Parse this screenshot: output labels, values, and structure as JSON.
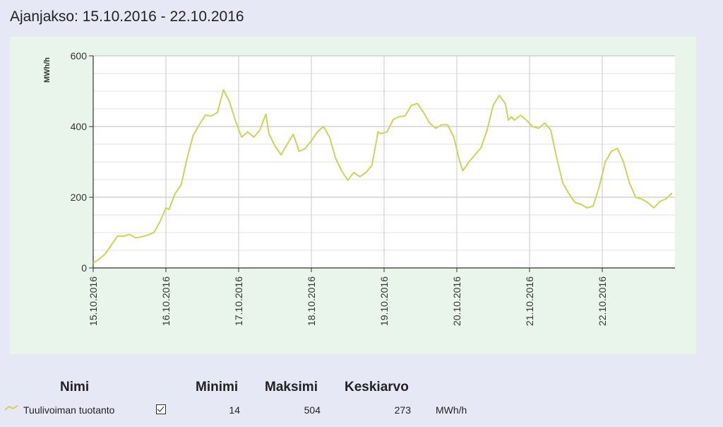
{
  "header": {
    "period_label": "Ajanjakso: 15.10.2016 - 22.10.2016"
  },
  "table": {
    "headers": {
      "name": "Nimi",
      "min": "Minimi",
      "max": "Maksimi",
      "avg": "Keskiarvo"
    },
    "rows": [
      {
        "name": "Tuulivoiman tuotanto",
        "checked": true,
        "min": "14",
        "max": "504",
        "avg": "273",
        "unit": "MWh/h"
      }
    ]
  },
  "colors": {
    "series": "#cdd45a",
    "axis": "#333333",
    "grid": "#c9c9c9",
    "panel": "#e9f5ea",
    "plot": "#ffffff"
  },
  "chart_data": {
    "type": "line",
    "ylabel": "MWh/h",
    "xlabel": "",
    "ylim": [
      0,
      600
    ],
    "yticks": [
      0,
      200,
      400,
      600
    ],
    "x_ticks": [
      "15.10.2016",
      "16.10.2016",
      "17.10.2016",
      "18.10.2016",
      "19.10.2016",
      "20.10.2016",
      "21.10.2016",
      "22.10.2016"
    ],
    "xlim": [
      "15.10.2016 00:00",
      "23.10.2016 00:00"
    ],
    "grid": true,
    "series": [
      {
        "points": [
          [
            "15.10.2016 00:00",
            14
          ],
          [
            "15.10.2016 02:00",
            25
          ],
          [
            "15.10.2016 04:00",
            40
          ],
          [
            "15.10.2016 06:00",
            65
          ],
          [
            "15.10.2016 08:00",
            90
          ],
          [
            "15.10.2016 10:00",
            90
          ],
          [
            "15.10.2016 12:00",
            95
          ],
          [
            "15.10.2016 14:00",
            85
          ],
          [
            "15.10.2016 16:00",
            88
          ],
          [
            "15.10.2016 18:00",
            93
          ],
          [
            "15.10.2016 20:00",
            100
          ],
          [
            "15.10.2016 22:00",
            130
          ],
          [
            "16.10.2016 00:00",
            170
          ],
          [
            "16.10.2016 01:00",
            165
          ],
          [
            "16.10.2016 03:00",
            210
          ],
          [
            "16.10.2016 05:00",
            235
          ],
          [
            "16.10.2016 07:00",
            310
          ],
          [
            "16.10.2016 09:00",
            375
          ],
          [
            "16.10.2016 11:00",
            405
          ],
          [
            "16.10.2016 13:00",
            432
          ],
          [
            "16.10.2016 15:00",
            430
          ],
          [
            "16.10.2016 17:00",
            440
          ],
          [
            "16.10.2016 19:00",
            504
          ],
          [
            "16.10.2016 21:00",
            470
          ],
          [
            "16.10.2016 23:00",
            415
          ],
          [
            "17.10.2016 01:00",
            370
          ],
          [
            "17.10.2016 03:00",
            385
          ],
          [
            "17.10.2016 05:00",
            370
          ],
          [
            "17.10.2016 07:00",
            390
          ],
          [
            "17.10.2016 09:00",
            435
          ],
          [
            "17.10.2016 10:00",
            380
          ],
          [
            "17.10.2016 12:00",
            345
          ],
          [
            "17.10.2016 14:00",
            320
          ],
          [
            "17.10.2016 16:00",
            350
          ],
          [
            "17.10.2016 18:00",
            378
          ],
          [
            "17.10.2016 20:00",
            330
          ],
          [
            "17.10.2016 22:00",
            338
          ],
          [
            "18.10.2016 00:00",
            360
          ],
          [
            "18.10.2016 02:00",
            385
          ],
          [
            "18.10.2016 04:00",
            400
          ],
          [
            "18.10.2016 06:00",
            370
          ],
          [
            "18.10.2016 08:00",
            310
          ],
          [
            "18.10.2016 10:00",
            275
          ],
          [
            "18.10.2016 12:00",
            248
          ],
          [
            "18.10.2016 14:00",
            270
          ],
          [
            "18.10.2016 16:00",
            258
          ],
          [
            "18.10.2016 18:00",
            270
          ],
          [
            "18.10.2016 20:00",
            290
          ],
          [
            "18.10.2016 22:00",
            385
          ],
          [
            "18.10.2016 23:00",
            380
          ],
          [
            "19.10.2016 01:00",
            385
          ],
          [
            "19.10.2016 03:00",
            420
          ],
          [
            "19.10.2016 05:00",
            428
          ],
          [
            "19.10.2016 07:00",
            430
          ],
          [
            "19.10.2016 09:00",
            460
          ],
          [
            "19.10.2016 11:00",
            465
          ],
          [
            "19.10.2016 13:00",
            440
          ],
          [
            "19.10.2016 15:00",
            410
          ],
          [
            "19.10.2016 17:00",
            395
          ],
          [
            "19.10.2016 19:00",
            405
          ],
          [
            "19.10.2016 21:00",
            405
          ],
          [
            "19.10.2016 23:00",
            370
          ],
          [
            "20.10.2016 01:00",
            300
          ],
          [
            "20.10.2016 02:00",
            275
          ],
          [
            "20.10.2016 04:00",
            300
          ],
          [
            "20.10.2016 06:00",
            320
          ],
          [
            "20.10.2016 08:00",
            340
          ],
          [
            "20.10.2016 10:00",
            390
          ],
          [
            "20.10.2016 12:00",
            460
          ],
          [
            "20.10.2016 14:00",
            488
          ],
          [
            "20.10.2016 16:00",
            465
          ],
          [
            "20.10.2016 17:00",
            418
          ],
          [
            "20.10.2016 18:00",
            428
          ],
          [
            "20.10.2016 19:00",
            418
          ],
          [
            "20.10.2016 21:00",
            432
          ],
          [
            "20.10.2016 23:00",
            418
          ],
          [
            "21.10.2016 01:00",
            400
          ],
          [
            "21.10.2016 03:00",
            395
          ],
          [
            "21.10.2016 05:00",
            410
          ],
          [
            "21.10.2016 07:00",
            390
          ],
          [
            "21.10.2016 09:00",
            310
          ],
          [
            "21.10.2016 11:00",
            240
          ],
          [
            "21.10.2016 13:00",
            210
          ],
          [
            "21.10.2016 15:00",
            185
          ],
          [
            "21.10.2016 17:00",
            180
          ],
          [
            "21.10.2016 19:00",
            170
          ],
          [
            "21.10.2016 21:00",
            175
          ],
          [
            "21.10.2016 23:00",
            230
          ],
          [
            "22.10.2016 01:00",
            300
          ],
          [
            "22.10.2016 03:00",
            330
          ],
          [
            "22.10.2016 05:00",
            338
          ],
          [
            "22.10.2016 07:00",
            300
          ],
          [
            "22.10.2016 09:00",
            240
          ],
          [
            "22.10.2016 11:00",
            200
          ],
          [
            "22.10.2016 13:00",
            195
          ],
          [
            "22.10.2016 15:00",
            185
          ],
          [
            "22.10.2016 17:00",
            170
          ],
          [
            "22.10.2016 19:00",
            188
          ],
          [
            "22.10.2016 21:00",
            195
          ],
          [
            "22.10.2016 23:00",
            212
          ]
        ]
      }
    ]
  }
}
